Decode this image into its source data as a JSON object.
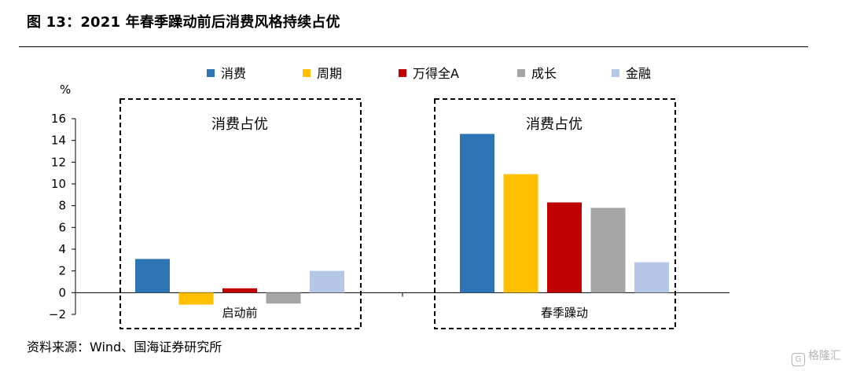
{
  "header": {
    "title": "图 13：2021 年春季躁动前后消费风格持续占优"
  },
  "footer": {
    "source": "资料来源：Wind、国海证券研究所",
    "watermark": "格隆汇"
  },
  "chart_data": {
    "type": "bar",
    "title": "",
    "ylabel": "%",
    "xlabel": "",
    "ylim": [
      -2,
      16
    ],
    "yticks": [
      -2,
      0,
      2,
      4,
      6,
      8,
      10,
      12,
      14,
      16
    ],
    "categories": [
      "启动前",
      "春季躁动"
    ],
    "series": [
      {
        "name": "消费",
        "color": "#2E75B6",
        "values": [
          3.1,
          14.6
        ]
      },
      {
        "name": "周期",
        "color": "#FFC000",
        "values": [
          -1.1,
          10.9
        ]
      },
      {
        "name": "万得全A",
        "color": "#C00000",
        "values": [
          0.4,
          8.3
        ]
      },
      {
        "name": "成长",
        "color": "#A5A5A5",
        "values": [
          -1.0,
          7.8
        ]
      },
      {
        "name": "金融",
        "color": "#B4C7E7",
        "values": [
          2.0,
          2.8
        ]
      }
    ],
    "legend_position": "top",
    "grid": false,
    "annotations": [
      {
        "text": "消费占优",
        "category": "启动前"
      },
      {
        "text": "消费占优",
        "category": "春季躁动"
      }
    ]
  }
}
